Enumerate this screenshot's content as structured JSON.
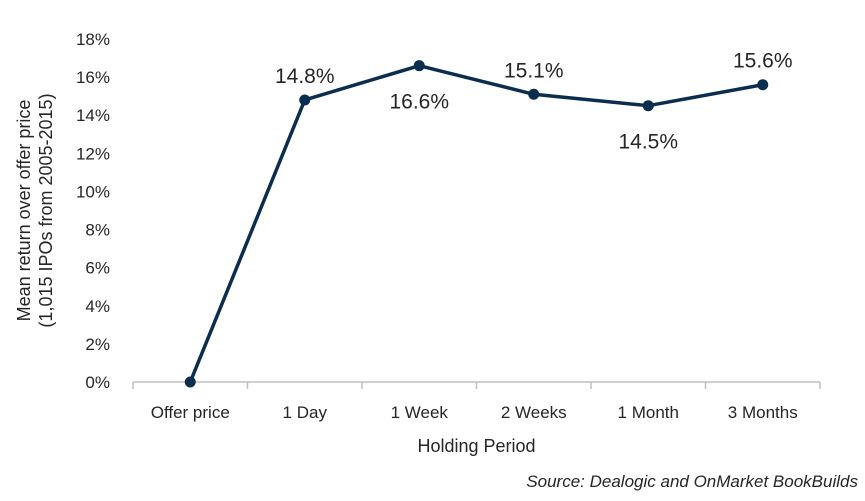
{
  "chart_data": {
    "type": "line",
    "categories": [
      "Offer price",
      "1 Day",
      "1 Week",
      "2 Weeks",
      "1 Month",
      "3 Months"
    ],
    "series": [
      {
        "values": [
          0.0,
          14.8,
          16.6,
          15.1,
          14.5,
          15.6
        ],
        "color": "#0b2d4e"
      }
    ],
    "data_labels": [
      "",
      "14.8%",
      "16.6%",
      "15.1%",
      "14.5%",
      "15.6%"
    ],
    "data_label_positions": [
      "none",
      "above",
      "below",
      "above",
      "below",
      "above"
    ],
    "xlabel": "Holding Period",
    "ylabel_line1": "Mean return over offer price",
    "ylabel_line2": "(1,015 IPOs from 2005-2015)",
    "ylim": [
      0,
      18
    ],
    "yticks": [
      0,
      2,
      4,
      6,
      8,
      10,
      12,
      14,
      16,
      18
    ],
    "ytick_labels": [
      "0%",
      "2%",
      "4%",
      "6%",
      "8%",
      "10%",
      "12%",
      "14%",
      "16%",
      "18%"
    ],
    "grid": false,
    "source": "Source: Dealogic and OnMarket BookBuilds",
    "axis_color": "#bfbfbf"
  }
}
